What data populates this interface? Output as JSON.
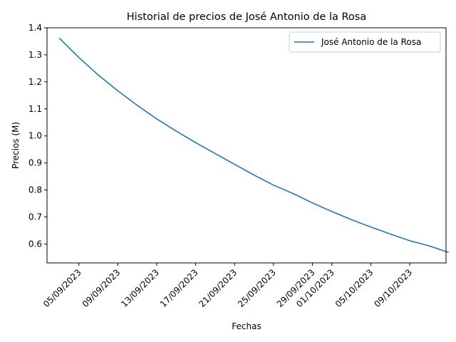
{
  "chart_data": {
    "type": "line",
    "title": "Historial de precios de José Antonio de la Rosa",
    "xlabel": "Fechas",
    "ylabel": "Precios (M)",
    "ylim": [
      0.53,
      1.4
    ],
    "yticks": [
      "0.6",
      "0.7",
      "0.8",
      "0.9",
      "1.0",
      "1.1",
      "1.2",
      "1.3",
      "1.4"
    ],
    "xticks": [
      {
        "date": "2023-09-05",
        "label": "05/09/2023"
      },
      {
        "date": "2023-09-09",
        "label": "09/09/2023"
      },
      {
        "date": "2023-09-13",
        "label": "13/09/2023"
      },
      {
        "date": "2023-09-17",
        "label": "17/09/2023"
      },
      {
        "date": "2023-09-21",
        "label": "21/09/2023"
      },
      {
        "date": "2023-09-25",
        "label": "25/09/2023"
      },
      {
        "date": "2023-09-29",
        "label": "29/09/2023"
      },
      {
        "date": "2023-10-01",
        "label": "01/10/2023"
      },
      {
        "date": "2023-10-05",
        "label": "05/10/2023"
      },
      {
        "date": "2023-10-09",
        "label": "09/10/2023"
      }
    ],
    "xlim": [
      "2023-09-02",
      "2023-10-13"
    ],
    "legend_position": "top-right",
    "grid": false,
    "series": [
      {
        "name": "José Antonio de la Rosa",
        "color": "#1f77b4",
        "points": [
          {
            "x": "2023-09-03",
            "y": 1.362
          },
          {
            "x": "2023-09-05",
            "y": 1.29
          },
          {
            "x": "2023-09-07",
            "y": 1.225
          },
          {
            "x": "2023-09-09",
            "y": 1.167
          },
          {
            "x": "2023-09-11",
            "y": 1.113
          },
          {
            "x": "2023-09-13",
            "y": 1.063
          },
          {
            "x": "2023-09-15",
            "y": 1.018
          },
          {
            "x": "2023-09-17",
            "y": 0.975
          },
          {
            "x": "2023-09-19",
            "y": 0.935
          },
          {
            "x": "2023-09-21",
            "y": 0.895
          },
          {
            "x": "2023-09-23",
            "y": 0.855
          },
          {
            "x": "2023-09-25",
            "y": 0.818
          },
          {
            "x": "2023-09-27",
            "y": 0.787
          },
          {
            "x": "2023-09-29",
            "y": 0.752
          },
          {
            "x": "2023-10-01",
            "y": 0.72
          },
          {
            "x": "2023-10-03",
            "y": 0.69
          },
          {
            "x": "2023-10-05",
            "y": 0.663
          },
          {
            "x": "2023-10-07",
            "y": 0.637
          },
          {
            "x": "2023-10-09",
            "y": 0.612
          },
          {
            "x": "2023-10-11",
            "y": 0.593
          },
          {
            "x": "2023-10-13",
            "y": 0.569
          }
        ]
      }
    ]
  }
}
